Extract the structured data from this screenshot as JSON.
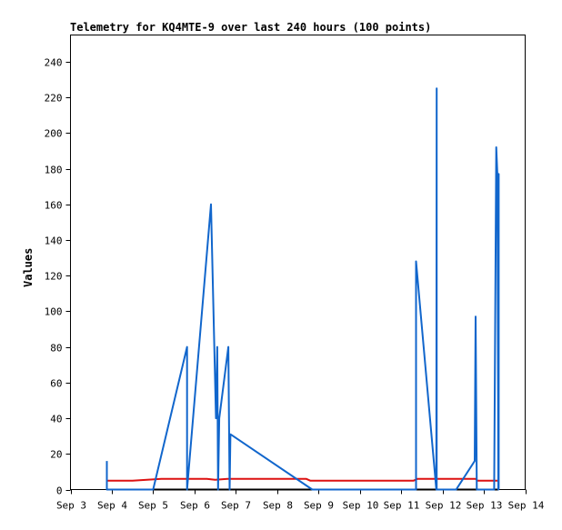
{
  "chart_data": {
    "type": "line",
    "title": "Telemetry for KQ4MTE-9 over last 240 hours (100 points)",
    "xlabel": "",
    "ylabel": "Values",
    "ylim": [
      0,
      255
    ],
    "xlim": [
      3.0,
      14.0
    ],
    "x_ticks": [
      {
        "v": 3,
        "label": "Sep 3"
      },
      {
        "v": 4,
        "label": "Sep 4"
      },
      {
        "v": 5,
        "label": "Sep 5"
      },
      {
        "v": 6,
        "label": "Sep 6"
      },
      {
        "v": 7,
        "label": "Sep 7"
      },
      {
        "v": 8,
        "label": "Sep 8"
      },
      {
        "v": 9,
        "label": "Sep 9"
      },
      {
        "v": 10,
        "label": "Sep 10"
      },
      {
        "v": 11,
        "label": "Sep 11"
      },
      {
        "v": 12,
        "label": "Sep 12"
      },
      {
        "v": 13,
        "label": "Sep 13"
      },
      {
        "v": 14,
        "label": "Sep 14"
      }
    ],
    "y_ticks": [
      0,
      20,
      40,
      60,
      80,
      100,
      120,
      140,
      160,
      180,
      200,
      220,
      240
    ],
    "grid": false,
    "series": [
      {
        "color": "#000000",
        "points": [
          [
            3.88,
            0
          ],
          [
            13.35,
            0
          ]
        ]
      },
      {
        "color": "#dd1111",
        "points": [
          [
            3.88,
            5
          ],
          [
            4.5,
            5
          ],
          [
            5.2,
            6
          ],
          [
            6.3,
            6
          ],
          [
            6.5,
            5.5
          ],
          [
            6.8,
            6
          ],
          [
            7.5,
            6
          ],
          [
            8.7,
            6
          ],
          [
            8.8,
            5
          ],
          [
            11.3,
            5
          ],
          [
            11.4,
            6
          ],
          [
            12.8,
            6
          ],
          [
            12.85,
            5
          ],
          [
            13.35,
            5
          ]
        ]
      },
      {
        "color": "#1166cc",
        "points": [
          [
            3.88,
            16
          ],
          [
            3.88,
            0
          ],
          [
            5.0,
            0
          ],
          [
            5.82,
            80
          ],
          [
            5.82,
            0
          ],
          [
            6.4,
            160
          ],
          [
            6.52,
            40
          ],
          [
            6.55,
            80
          ],
          [
            6.57,
            0
          ],
          [
            6.6,
            40
          ],
          [
            6.82,
            80
          ],
          [
            6.85,
            0
          ],
          [
            6.87,
            31
          ],
          [
            8.85,
            0
          ],
          [
            11.36,
            0
          ],
          [
            11.36,
            128
          ],
          [
            11.85,
            0
          ],
          [
            11.86,
            225
          ],
          [
            11.86,
            0
          ],
          [
            12.33,
            0
          ],
          [
            12.78,
            16
          ],
          [
            12.8,
            97
          ],
          [
            12.83,
            0
          ],
          [
            13.25,
            0
          ],
          [
            13.3,
            192
          ],
          [
            13.33,
            176
          ],
          [
            13.35,
            0
          ],
          [
            13.36,
            177
          ],
          [
            13.36,
            0
          ]
        ]
      }
    ]
  }
}
